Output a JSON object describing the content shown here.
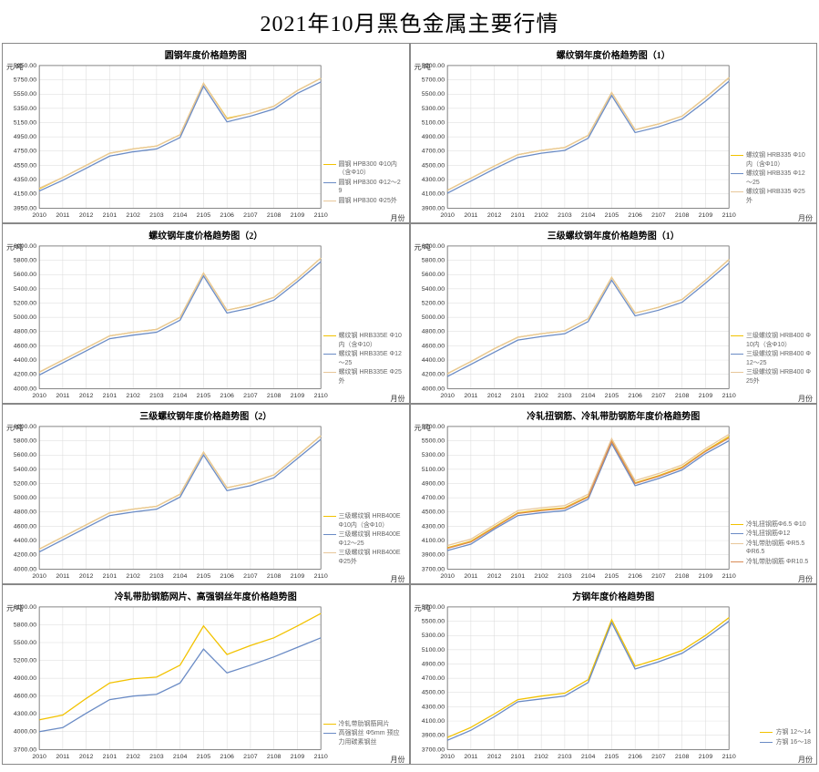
{
  "main_title": "2021年10月黑色金属主要行情",
  "global": {
    "y_unit": "元/吨",
    "x_unit": "月份",
    "x_ticks": [
      "2010",
      "2011",
      "2012",
      "2101",
      "2102",
      "2103",
      "2104",
      "2105",
      "2106",
      "2107",
      "2108",
      "2109",
      "2110"
    ],
    "grid_color": "#d9d9d9",
    "axis_color": "#555555",
    "bg": "#ffffff",
    "tick_fontsize": 7,
    "title_fontsize": 10
  },
  "panels": [
    {
      "title": "圆钢年度价格趋势图",
      "ylim": [
        3950,
        5950
      ],
      "ytick_step": 200,
      "series": [
        {
          "name": "圆钢 HPB300 Φ10内（含Φ10）",
          "color": "#f2c200",
          "data": [
            4220,
            4380,
            4550,
            4720,
            4780,
            4820,
            4980,
            5700,
            5210,
            5280,
            5380,
            5600,
            5770
          ]
        },
        {
          "name": "圆钢 HPB300 Φ12～29",
          "color": "#6a8bc5",
          "data": [
            4190,
            4340,
            4510,
            4680,
            4740,
            4780,
            4940,
            5660,
            5160,
            5240,
            5340,
            5560,
            5720
          ]
        },
        {
          "name": "圆钢 HPB300 Φ25外",
          "color": "#e8c79a",
          "data": [
            4230,
            4380,
            4550,
            4720,
            4780,
            4820,
            4980,
            5700,
            5200,
            5280,
            5380,
            5600,
            5770
          ]
        }
      ]
    },
    {
      "title": "螺纹钢年度价格趋势图（1）",
      "ylim": [
        3900,
        5900
      ],
      "ytick_step": 200,
      "series": [
        {
          "name": "螺纹钢 HRB335 Φ10内（含Φ10）",
          "color": "#f2c200",
          "data": [
            4150,
            4320,
            4490,
            4650,
            4710,
            4750,
            4920,
            5520,
            5000,
            5080,
            5190,
            5450,
            5730
          ]
        },
        {
          "name": "螺纹钢 HRB335 Φ12～25",
          "color": "#6a8bc5",
          "data": [
            4110,
            4280,
            4450,
            4610,
            4670,
            4710,
            4880,
            5480,
            4960,
            5040,
            5150,
            5400,
            5680
          ]
        },
        {
          "name": "螺纹钢 HRB335 Φ25外",
          "color": "#e8c79a",
          "data": [
            4150,
            4320,
            4490,
            4650,
            4710,
            4750,
            4920,
            5520,
            5000,
            5080,
            5190,
            5450,
            5730
          ]
        }
      ]
    },
    {
      "title": "螺纹钢年度价格趋势图（2）",
      "ylim": [
        4000,
        6000
      ],
      "ytick_step": 200,
      "series": [
        {
          "name": "螺纹钢 HRB335E Φ10内（含Φ10）",
          "color": "#f2c200",
          "data": [
            4230,
            4400,
            4570,
            4740,
            4790,
            4830,
            5000,
            5620,
            5100,
            5170,
            5280,
            5540,
            5830
          ]
        },
        {
          "name": "螺纹钢 HRB335E Φ12～25",
          "color": "#6a8bc5",
          "data": [
            4190,
            4360,
            4530,
            4700,
            4750,
            4790,
            4960,
            5580,
            5060,
            5130,
            5240,
            5500,
            5780
          ]
        },
        {
          "name": "螺纹钢 HRB335E Φ25外",
          "color": "#e8c79a",
          "data": [
            4230,
            4400,
            4570,
            4740,
            4790,
            4830,
            5000,
            5620,
            5100,
            5170,
            5280,
            5540,
            5830
          ]
        }
      ]
    },
    {
      "title": "三级螺纹钢年度价格趋势图（1）",
      "ylim": [
        4000,
        6000
      ],
      "ytick_step": 200,
      "series": [
        {
          "name": "三级螺纹钢 HRB400 Φ10内（含Φ10）",
          "color": "#f2c200",
          "data": [
            4210,
            4380,
            4560,
            4720,
            4770,
            4810,
            4980,
            5560,
            5060,
            5140,
            5250,
            5520,
            5810
          ]
        },
        {
          "name": "三级螺纹钢 HRB400 Φ12～25",
          "color": "#6a8bc5",
          "data": [
            4170,
            4340,
            4510,
            4680,
            4730,
            4770,
            4940,
            5520,
            5020,
            5100,
            5210,
            5480,
            5760
          ]
        },
        {
          "name": "三级螺纹钢 HRB400 Φ25外",
          "color": "#e8c79a",
          "data": [
            4210,
            4380,
            4560,
            4720,
            4770,
            4810,
            4980,
            5560,
            5060,
            5140,
            5250,
            5520,
            5810
          ]
        }
      ]
    },
    {
      "title": "三级螺纹钢年度价格趋势图（2）",
      "ylim": [
        4000,
        6000
      ],
      "ytick_step": 200,
      "series": [
        {
          "name": "三级螺纹钢 HRB400E Φ10内（含Φ10）",
          "color": "#f2c200",
          "data": [
            4280,
            4450,
            4620,
            4790,
            4840,
            4880,
            5050,
            5640,
            5140,
            5210,
            5320,
            5590,
            5870
          ]
        },
        {
          "name": "三级螺纹钢 HRB400E Φ12～25",
          "color": "#6a8bc5",
          "data": [
            4240,
            4410,
            4580,
            4750,
            4800,
            4840,
            5010,
            5600,
            5100,
            5170,
            5280,
            5550,
            5820
          ]
        },
        {
          "name": "三级螺纹钢 HRB400E Φ25外",
          "color": "#e8c79a",
          "data": [
            4280,
            4450,
            4620,
            4790,
            4840,
            4880,
            5050,
            5640,
            5140,
            5210,
            5320,
            5590,
            5870
          ]
        }
      ]
    },
    {
      "title": "冷轧扭钢筋、冷轧带肋钢筋年度价格趋势图",
      "ylim": [
        3700,
        5700
      ],
      "ytick_step": 200,
      "series": [
        {
          "name": "冷轧扭钢筋Φ6.5 Φ10",
          "color": "#f2c200",
          "data": [
            4000,
            4090,
            4290,
            4490,
            4530,
            4560,
            4720,
            5500,
            4910,
            5010,
            5130,
            5360,
            5560
          ]
        },
        {
          "name": "冷轧扭钢筋Φ12",
          "color": "#6a8bc5",
          "data": [
            3960,
            4050,
            4260,
            4450,
            4490,
            4520,
            4680,
            5460,
            4870,
            4970,
            5090,
            5320,
            5500
          ]
        },
        {
          "name": "冷轧带肋钢筋 ΦR5.5 ΦR6.5",
          "color": "#e8c79a",
          "data": [
            4030,
            4120,
            4320,
            4520,
            4560,
            4590,
            4750,
            5530,
            4940,
            5040,
            5160,
            5390,
            5590
          ]
        },
        {
          "name": "冷轧带肋钢筋 ΦR10.5",
          "color": "#d98b56",
          "data": [
            3990,
            4080,
            4280,
            4480,
            4520,
            4550,
            4710,
            5490,
            4900,
            5000,
            5120,
            5350,
            5540
          ]
        }
      ]
    },
    {
      "title": "冷轧带肋钢筋网片、高强钢丝年度价格趋势图",
      "ylim": [
        3700,
        6100
      ],
      "ytick_step": 300,
      "series": [
        {
          "name": "冷轧带肋钢筋网片",
          "color": "#f2c200",
          "data": [
            4200,
            4280,
            4560,
            4820,
            4890,
            4920,
            5120,
            5780,
            5300,
            5450,
            5580,
            5780,
            5990
          ]
        },
        {
          "name": "高强钢丝 Φ5mm 预应力用碳素钢丝",
          "color": "#6a8bc5",
          "data": [
            4000,
            4070,
            4310,
            4540,
            4600,
            4630,
            4820,
            5390,
            4990,
            5120,
            5260,
            5420,
            5580
          ]
        }
      ]
    },
    {
      "title": "方钢年度价格趋势图",
      "ylim": [
        3700,
        5700
      ],
      "ytick_step": 200,
      "series": [
        {
          "name": "方钢 12～14",
          "color": "#f2c200",
          "data": [
            3870,
            4010,
            4200,
            4400,
            4450,
            4490,
            4680,
            5520,
            4870,
            4970,
            5090,
            5300,
            5550
          ]
        },
        {
          "name": "方钢 16～18",
          "color": "#6a8bc5",
          "data": [
            3830,
            3970,
            4160,
            4370,
            4410,
            4450,
            4640,
            5480,
            4830,
            4930,
            5050,
            5260,
            5500
          ]
        }
      ]
    }
  ]
}
